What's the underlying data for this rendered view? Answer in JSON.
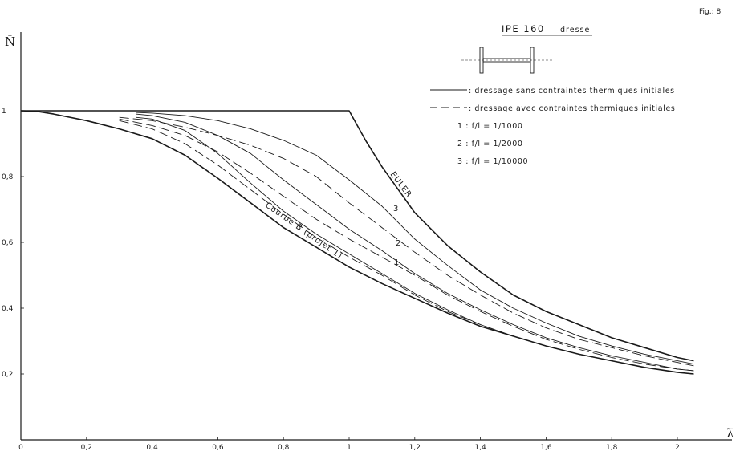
{
  "figure": {
    "label": "Fig.: 8",
    "title": "IPE 160",
    "title_suffix": "dressé"
  },
  "legend": {
    "solid_entry": ": dressage sans contraintes thermiques initiales",
    "dashed_entry": ": dressage avec contraintes thermiques initiales",
    "entries": [
      {
        "id": "1",
        "text": "1 :  f/l = 1/1000"
      },
      {
        "id": "2",
        "text": "2 :  f/l = 1/2000"
      },
      {
        "id": "3",
        "text": "3 :  f/l = 1/10000"
      }
    ]
  },
  "annotations": {
    "euler": "EULER",
    "courbe_b": "Courbe B (projet 1)",
    "label_1": "1",
    "label_2": "2",
    "label_3": "3"
  },
  "chart_data": {
    "type": "line",
    "title": "IPE 160 dressé",
    "xlabel": "λ̄",
    "ylabel": "N̄",
    "xlim": [
      0,
      2.2
    ],
    "ylim": [
      0,
      1.15
    ],
    "x_ticks": [
      "0",
      "0,2",
      "0,4",
      "0,6",
      "0,8",
      "1",
      "1,2",
      "1,4",
      "1,6",
      "1,8",
      "2"
    ],
    "y_ticks": [
      "0,2",
      "0,4",
      "0,6",
      "0,8",
      "1"
    ],
    "grid": false,
    "legend_position": "top-right",
    "series": [
      {
        "name": "EULER",
        "style": "solid-bold",
        "x": [
          0,
          1.0,
          1.05,
          1.1,
          1.2,
          1.3,
          1.4,
          1.5,
          1.6,
          1.7,
          1.8,
          1.9,
          2.0,
          2.05
        ],
        "y": [
          1.0,
          1.0,
          0.91,
          0.83,
          0.69,
          0.59,
          0.51,
          0.44,
          0.39,
          0.35,
          0.31,
          0.28,
          0.25,
          0.24
        ]
      },
      {
        "name": "Courbe B (projet 1)",
        "style": "solid-bold",
        "x": [
          0,
          0.05,
          0.1,
          0.2,
          0.3,
          0.4,
          0.5,
          0.6,
          0.7,
          0.8,
          0.9,
          1.0,
          1.1,
          1.2,
          1.3,
          1.4,
          1.5,
          1.6,
          1.7,
          1.8,
          1.9,
          2.0,
          2.05
        ],
        "y": [
          1.0,
          0.998,
          0.99,
          0.97,
          0.945,
          0.915,
          0.865,
          0.795,
          0.72,
          0.645,
          0.585,
          0.525,
          0.475,
          0.43,
          0.385,
          0.345,
          0.315,
          0.285,
          0.26,
          0.24,
          0.22,
          0.205,
          0.2
        ]
      },
      {
        "name": "1",
        "style": "solid",
        "x": [
          0.35,
          0.4,
          0.5,
          0.6,
          0.7,
          0.8,
          0.9,
          1.0,
          1.1,
          1.2,
          1.3,
          1.4,
          1.5,
          1.6,
          1.7,
          1.8,
          1.9,
          2.0,
          2.05
        ],
        "y": [
          0.98,
          0.975,
          0.94,
          0.87,
          0.78,
          0.695,
          0.625,
          0.565,
          0.505,
          0.445,
          0.395,
          0.35,
          0.315,
          0.285,
          0.26,
          0.24,
          0.22,
          0.205,
          0.2
        ]
      },
      {
        "name": "2",
        "style": "solid",
        "x": [
          0.35,
          0.4,
          0.5,
          0.6,
          0.7,
          0.8,
          0.9,
          1.0,
          1.1,
          1.2,
          1.3,
          1.4,
          1.5,
          1.6,
          1.7,
          1.8,
          1.9,
          2.0,
          2.05
        ],
        "y": [
          0.99,
          0.985,
          0.965,
          0.925,
          0.87,
          0.79,
          0.715,
          0.64,
          0.575,
          0.505,
          0.445,
          0.395,
          0.35,
          0.31,
          0.28,
          0.255,
          0.235,
          0.215,
          0.21
        ]
      },
      {
        "name": "3",
        "style": "solid",
        "x": [
          0.35,
          0.4,
          0.5,
          0.6,
          0.7,
          0.8,
          0.9,
          1.0,
          1.1,
          1.2,
          1.3,
          1.4,
          1.5,
          1.6,
          1.7,
          1.8,
          1.9,
          2.0,
          2.05
        ],
        "y": [
          0.995,
          0.993,
          0.985,
          0.97,
          0.945,
          0.91,
          0.865,
          0.79,
          0.71,
          0.61,
          0.53,
          0.455,
          0.4,
          0.355,
          0.315,
          0.285,
          0.26,
          0.24,
          0.23
        ]
      },
      {
        "name": "1 dashed",
        "style": "dashed",
        "x": [
          0.3,
          0.4,
          0.5,
          0.6,
          0.7,
          0.8,
          0.9,
          1.0,
          1.1,
          1.2,
          1.3,
          1.4,
          1.5,
          1.6,
          1.7,
          1.8,
          1.9,
          2.0,
          2.05
        ],
        "y": [
          0.97,
          0.945,
          0.9,
          0.835,
          0.76,
          0.685,
          0.615,
          0.555,
          0.5,
          0.44,
          0.39,
          0.35,
          0.315,
          0.285,
          0.26,
          0.24,
          0.22,
          0.205,
          0.2
        ]
      },
      {
        "name": "2 dashed",
        "style": "dashed",
        "x": [
          0.3,
          0.4,
          0.5,
          0.6,
          0.7,
          0.8,
          0.9,
          1.0,
          1.1,
          1.2,
          1.3,
          1.4,
          1.5,
          1.6,
          1.7,
          1.8,
          1.9,
          2.0,
          2.05
        ],
        "y": [
          0.975,
          0.955,
          0.925,
          0.875,
          0.81,
          0.74,
          0.67,
          0.61,
          0.555,
          0.5,
          0.44,
          0.39,
          0.345,
          0.305,
          0.275,
          0.25,
          0.23,
          0.215,
          0.21
        ]
      },
      {
        "name": "3 dashed",
        "style": "dashed",
        "x": [
          0.3,
          0.4,
          0.5,
          0.6,
          0.7,
          0.8,
          0.9,
          1.0,
          1.1,
          1.2,
          1.3,
          1.4,
          1.5,
          1.6,
          1.7,
          1.8,
          1.9,
          2.0,
          2.05
        ],
        "y": [
          0.98,
          0.97,
          0.95,
          0.925,
          0.895,
          0.855,
          0.8,
          0.72,
          0.645,
          0.57,
          0.5,
          0.44,
          0.385,
          0.34,
          0.305,
          0.28,
          0.255,
          0.235,
          0.225
        ]
      }
    ]
  }
}
